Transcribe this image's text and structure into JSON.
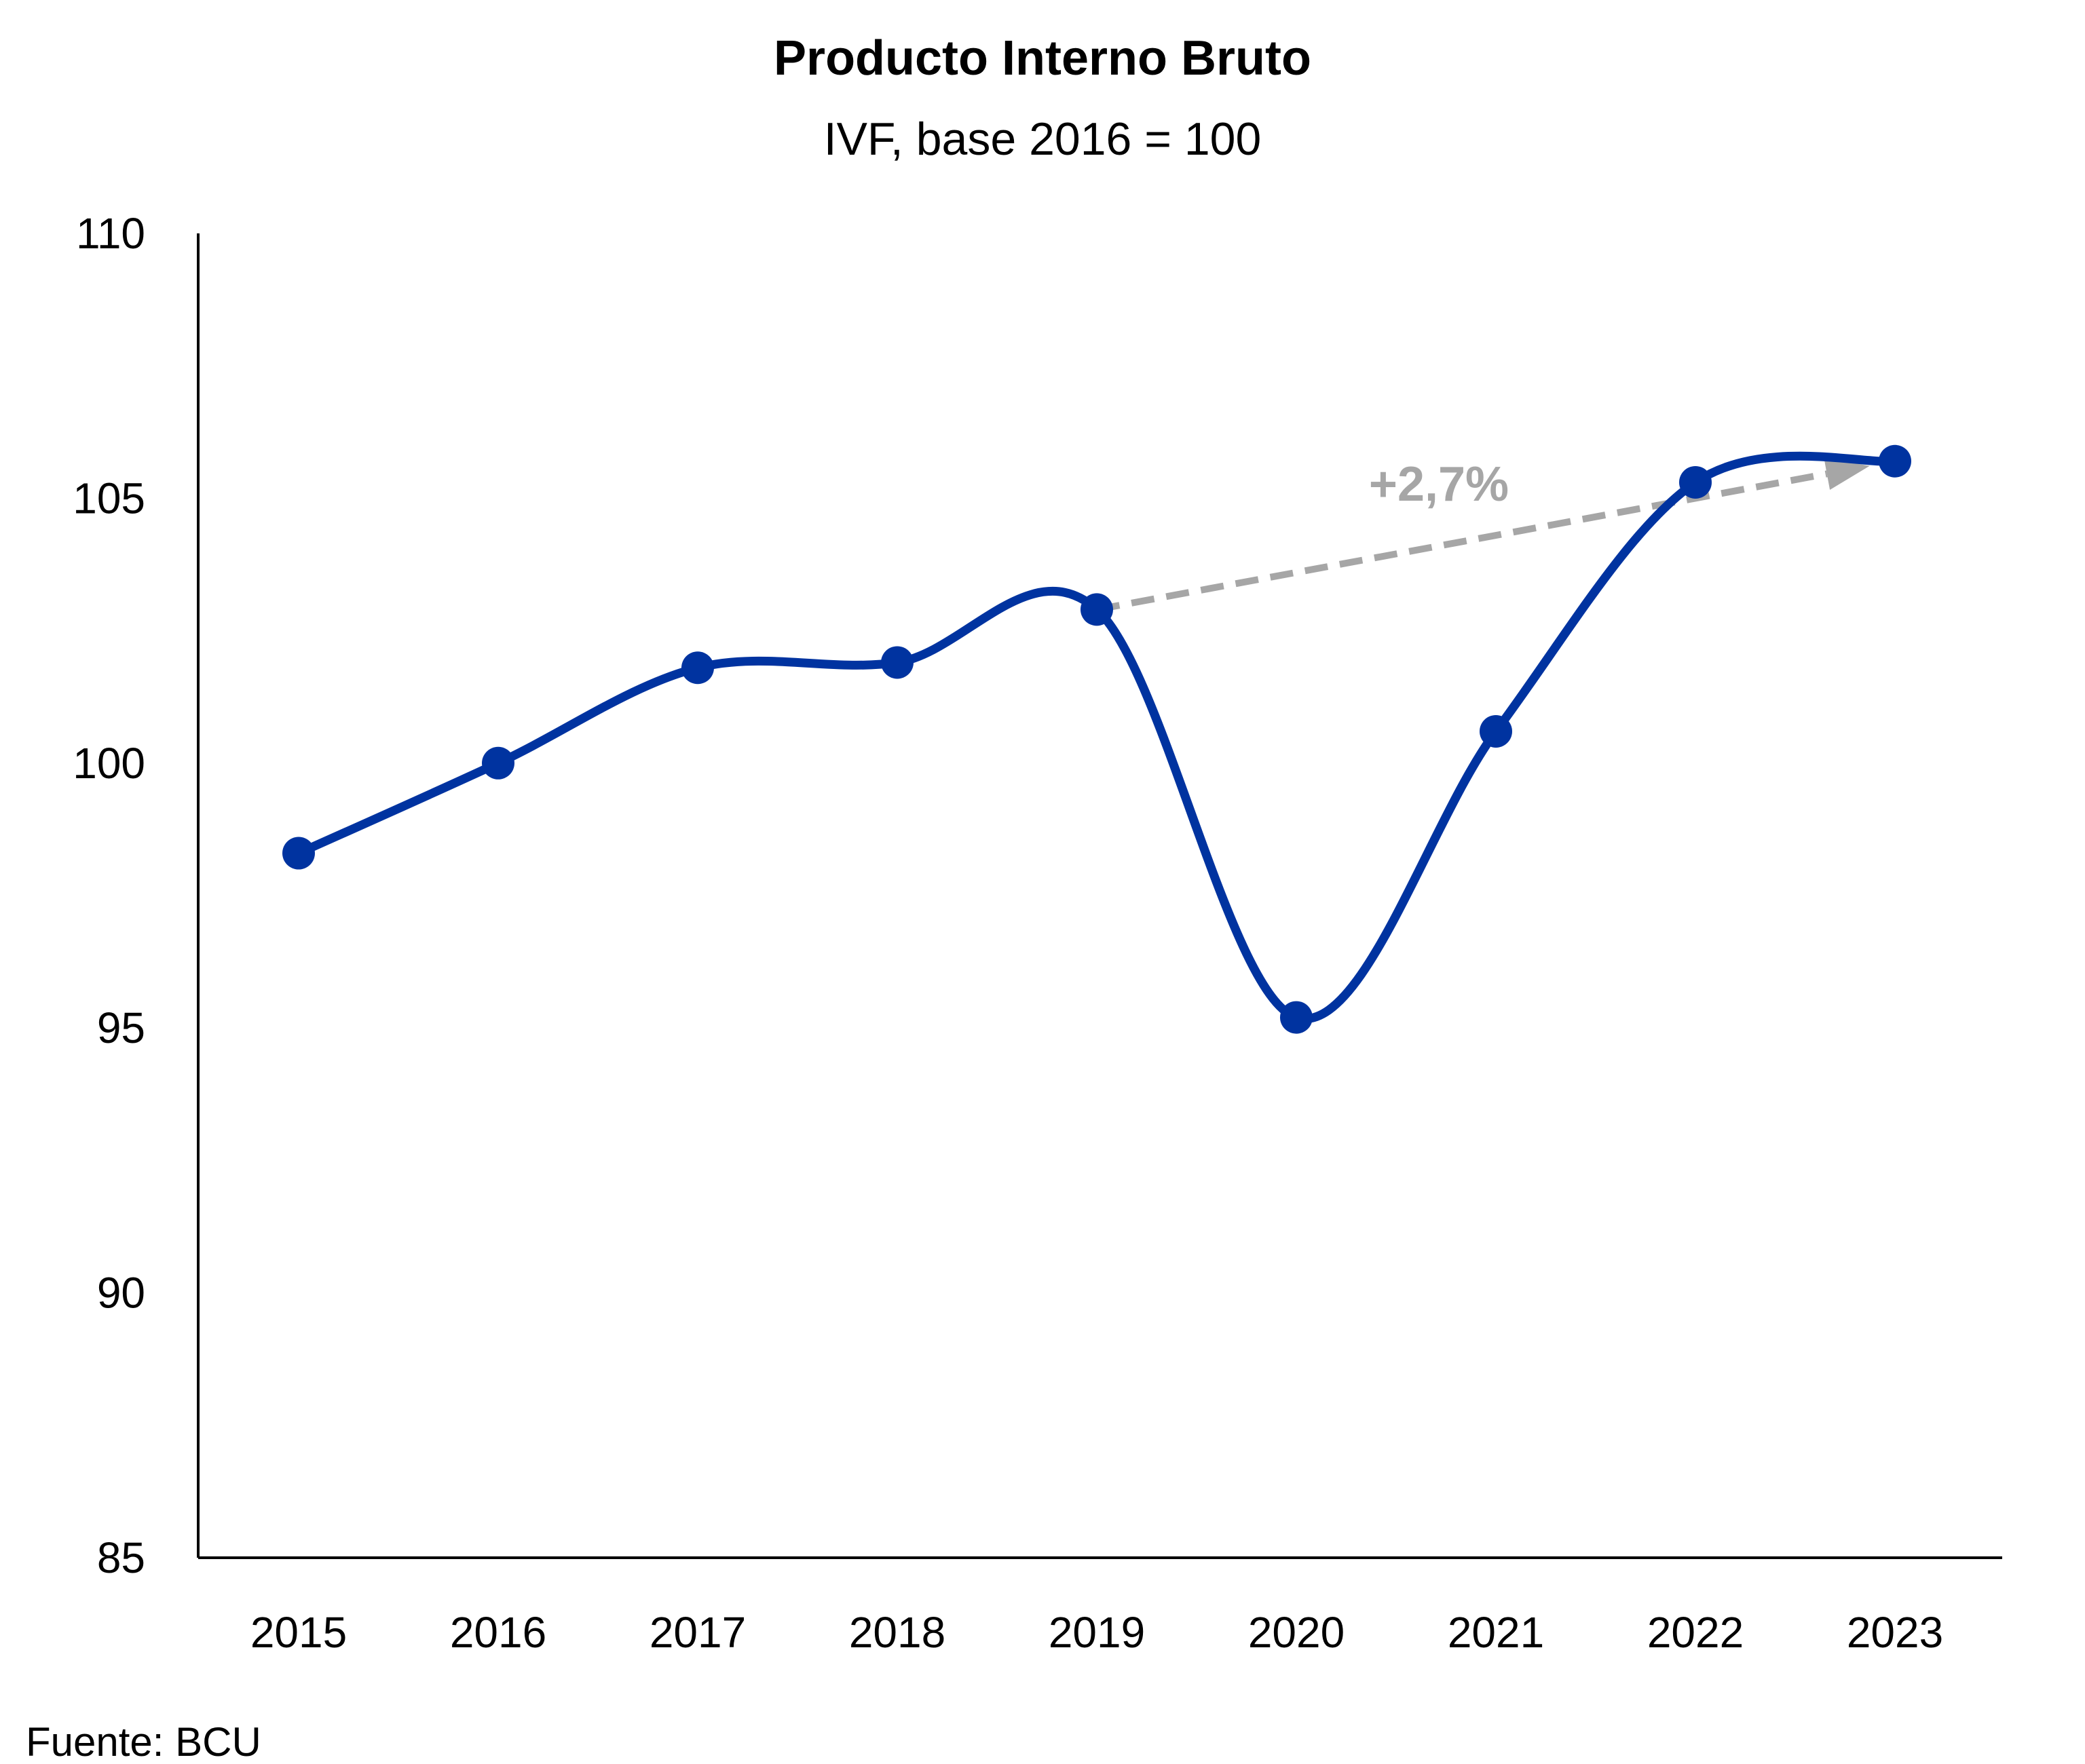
{
  "chart_data": {
    "type": "line",
    "title": "Producto Interno Bruto",
    "subtitle": "IVF, base 2016 = 100",
    "categories": [
      "2015",
      "2016",
      "2017",
      "2018",
      "2019",
      "2020",
      "2021",
      "2022",
      "2023"
    ],
    "series": [
      {
        "values": [
          98.3,
          100.0,
          101.8,
          101.9,
          102.9,
          95.2,
          100.6,
          105.3,
          105.7
        ],
        "color": "#0033A0"
      }
    ],
    "ylim": [
      85,
      110
    ],
    "yticks": [
      "85",
      "90",
      "95",
      "100",
      "105",
      "110"
    ],
    "grid": false,
    "annotation": {
      "text": "+2,7%",
      "from_category": "2019",
      "to_category": "2023",
      "color": "#A6A6A6",
      "style": "dashed-arrow"
    },
    "source": "Fuente: BCU"
  }
}
